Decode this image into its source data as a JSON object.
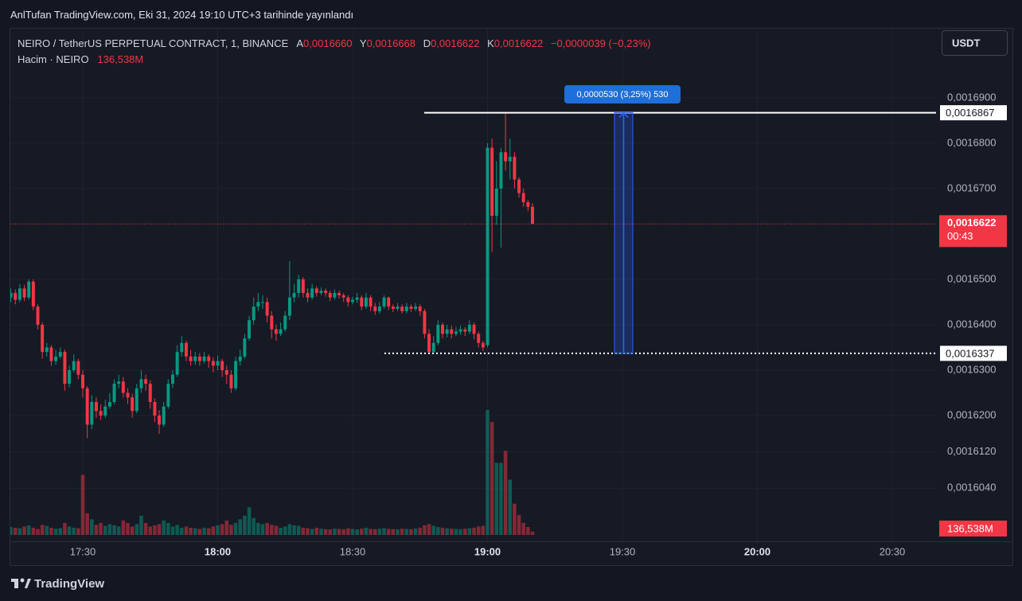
{
  "header": {
    "published": "AnlTufan TradingView.com, Eki 31, 2024 19:10 UTC+3 tarihinde yayınlandı",
    "currency": "USDT",
    "brand": "TradingView"
  },
  "chart_data": {
    "type": "candlestick",
    "legend": {
      "symbol": "NEIRO / TetherUS PERPETUAL CONTRACT, 1, BINANCE",
      "fields": [
        {
          "key": "A",
          "value": "0,0016660"
        },
        {
          "key": "Y",
          "value": "0,0016668"
        },
        {
          "key": "D",
          "value": "0,0016622"
        },
        {
          "key": "K",
          "value": "0,0016622"
        }
      ],
      "change": "−0,0000039 (−0,23%)",
      "volume_title": "Hacim · NEIRO"
    },
    "up_color": "#089981",
    "down_color": "#f23645",
    "x": [
      "17:14",
      "17:15",
      "17:16",
      "17:17",
      "17:18",
      "17:19",
      "17:20",
      "17:21",
      "17:22",
      "17:23",
      "17:24",
      "17:25",
      "17:26",
      "17:27",
      "17:28",
      "17:29",
      "17:30",
      "17:31",
      "17:32",
      "17:33",
      "17:34",
      "17:35",
      "17:36",
      "17:37",
      "17:38",
      "17:39",
      "17:40",
      "17:41",
      "17:42",
      "17:43",
      "17:44",
      "17:45",
      "17:46",
      "17:47",
      "17:48",
      "17:49",
      "17:50",
      "17:51",
      "17:52",
      "17:53",
      "17:54",
      "17:55",
      "17:56",
      "17:57",
      "17:58",
      "17:59",
      "18:00",
      "18:01",
      "18:02",
      "18:03",
      "18:04",
      "18:05",
      "18:06",
      "18:07",
      "18:08",
      "18:09",
      "18:10",
      "18:11",
      "18:12",
      "18:13",
      "18:14",
      "18:15",
      "18:16",
      "18:17",
      "18:18",
      "18:19",
      "18:20",
      "18:21",
      "18:22",
      "18:23",
      "18:24",
      "18:25",
      "18:26",
      "18:27",
      "18:28",
      "18:29",
      "18:30",
      "18:31",
      "18:32",
      "18:33",
      "18:34",
      "18:35",
      "18:36",
      "18:37",
      "18:38",
      "18:39",
      "18:40",
      "18:41",
      "18:42",
      "18:43",
      "18:44",
      "18:45",
      "18:46",
      "18:47",
      "18:48",
      "18:49",
      "18:50",
      "18:51",
      "18:52",
      "18:53",
      "18:54",
      "18:55",
      "18:56",
      "18:57",
      "18:58",
      "18:59",
      "19:00",
      "19:01",
      "19:02",
      "19:03",
      "19:04",
      "19:05",
      "19:06",
      "19:07",
      "19:08",
      "19:09",
      "19:10"
    ],
    "open": [
      0.001646,
      0.001647,
      0.0016455,
      0.001648,
      0.001646,
      0.0016495,
      0.001644,
      0.00164,
      0.001634,
      0.001635,
      0.001632,
      0.001633,
      0.001634,
      0.001627,
      0.00163,
      0.001632,
      0.001629,
      0.001626,
      0.001618,
      0.001623,
      0.001621,
      0.00162,
      0.001622,
      0.001623,
      0.001627,
      0.0016275,
      0.001625,
      0.001624,
      0.001621,
      0.001626,
      0.001628,
      0.001627,
      0.001623,
      0.00162,
      0.001618,
      0.001622,
      0.001627,
      0.001629,
      0.001634,
      0.001636,
      0.001633,
      0.001632,
      0.001633,
      0.001632,
      0.001633,
      0.001632,
      0.001631,
      0.001632,
      0.00163,
      0.001629,
      0.001626,
      0.001632,
      0.001633,
      0.001637,
      0.001641,
      0.001644,
      0.001645,
      0.001645,
      0.001642,
      0.001639,
      0.001638,
      0.001639,
      0.001642,
      0.001646,
      0.001647,
      0.00165,
      0.001647,
      0.001646,
      0.001648,
      0.001647,
      0.0016475,
      0.001647,
      0.001646,
      0.001647,
      0.0016465,
      0.001646,
      0.001645,
      0.0016455,
      0.001646,
      0.001644,
      0.001646,
      0.001644,
      0.001643,
      0.001644,
      0.001646,
      0.001644,
      0.0016435,
      0.001644,
      0.001643,
      0.001644,
      0.0016435,
      0.001644,
      0.001643,
      0.001638,
      0.001634,
      0.001636,
      0.00164,
      0.001638,
      0.001639,
      0.001638,
      0.0016385,
      0.001639,
      0.0016385,
      0.00164,
      0.001638,
      0.001636,
      0.0016355,
      0.001679,
      0.001664,
      0.00167,
      0.001678,
      0.001676,
      0.001677,
      0.001672,
      0.001669,
      0.001667,
      0.001666
    ],
    "high": [
      0.001648,
      0.0016478,
      0.001649,
      0.0016488,
      0.00165,
      0.00165,
      0.0016445,
      0.0016405,
      0.001636,
      0.0016355,
      0.0016345,
      0.001635,
      0.0016345,
      0.001631,
      0.0016335,
      0.0016325,
      0.00163,
      0.0016265,
      0.0016245,
      0.001624,
      0.0016225,
      0.0016235,
      0.001625,
      0.001628,
      0.001629,
      0.0016285,
      0.001626,
      0.0016248,
      0.001627,
      0.00163,
      0.001629,
      0.0016278,
      0.0016238,
      0.0016212,
      0.001623,
      0.001628,
      0.00163,
      0.0016355,
      0.0016375,
      0.0016365,
      0.0016345,
      0.001634,
      0.0016338,
      0.001634,
      0.0016335,
      0.0016328,
      0.0016332,
      0.0016325,
      0.001631,
      0.00163,
      0.001633,
      0.0016345,
      0.001638,
      0.001642,
      0.001646,
      0.001647,
      0.0016465,
      0.001646,
      0.001643,
      0.00164,
      0.0016405,
      0.001643,
      0.001654,
      0.001649,
      0.001651,
      0.0016505,
      0.001648,
      0.001649,
      0.0016485,
      0.0016482,
      0.001648,
      0.0016475,
      0.0016478,
      0.0016475,
      0.001647,
      0.0016465,
      0.0016462,
      0.001647,
      0.0016465,
      0.001647,
      0.0016465,
      0.0016448,
      0.001645,
      0.0016465,
      0.0016462,
      0.0016445,
      0.0016448,
      0.0016445,
      0.0016448,
      0.0016445,
      0.0016448,
      0.0016445,
      0.0016435,
      0.001639,
      0.0016375,
      0.001641,
      0.0016405,
      0.00164,
      0.0016398,
      0.0016395,
      0.0016398,
      0.0016395,
      0.001641,
      0.0016405,
      0.0016385,
      0.0016365,
      0.00168,
      0.001681,
      0.001676,
      0.001679,
      0.0016867,
      0.001681,
      0.001678,
      0.0016725,
      0.00167,
      0.0016675,
      0.0016668
    ],
    "low": [
      0.001645,
      0.0016445,
      0.001645,
      0.0016452,
      0.0016455,
      0.0016432,
      0.001639,
      0.0016325,
      0.001633,
      0.001631,
      0.0016312,
      0.0016325,
      0.0016255,
      0.0016262,
      0.0016295,
      0.001628,
      0.001624,
      0.001615,
      0.001617,
      0.0016195,
      0.001619,
      0.0016195,
      0.0016215,
      0.0016225,
      0.001626,
      0.001624,
      0.0016225,
      0.0016195,
      0.0016205,
      0.001625,
      0.0016255,
      0.0016215,
      0.0016185,
      0.001616,
      0.0016175,
      0.0016215,
      0.001626,
      0.0016285,
      0.001633,
      0.001632,
      0.001631,
      0.0016312,
      0.001631,
      0.0016315,
      0.0016305,
      0.0016295,
      0.00163,
      0.0016285,
      0.001627,
      0.001625,
      0.0016255,
      0.001631,
      0.0016325,
      0.0016365,
      0.00164,
      0.001643,
      0.0016435,
      0.0016405,
      0.001637,
      0.0016365,
      0.0016375,
      0.0016385,
      0.001641,
      0.001645,
      0.001646,
      0.001646,
      0.001645,
      0.0016455,
      0.0016462,
      0.0016465,
      0.0016462,
      0.0016452,
      0.0016455,
      0.0016458,
      0.001645,
      0.001644,
      0.0016445,
      0.0016448,
      0.0016432,
      0.0016435,
      0.001643,
      0.0016422,
      0.0016425,
      0.0016435,
      0.0016432,
      0.0016428,
      0.001643,
      0.0016425,
      0.0016425,
      0.0016428,
      0.001643,
      0.001642,
      0.001637,
      0.0016337,
      0.0016337,
      0.0016355,
      0.001637,
      0.0016372,
      0.001637,
      0.0016375,
      0.0016378,
      0.0016375,
      0.001638,
      0.0016368,
      0.001635,
      0.0016342,
      0.001635,
      0.001656,
      0.001662,
      0.001657,
      0.001674,
      0.001672,
      0.00167,
      0.001668,
      0.001666,
      0.001665,
      0.0016622
    ],
    "close": [
      0.001647,
      0.0016455,
      0.001648,
      0.001646,
      0.0016495,
      0.001644,
      0.00164,
      0.001634,
      0.001635,
      0.001632,
      0.001633,
      0.001634,
      0.001627,
      0.00163,
      0.001632,
      0.001629,
      0.001626,
      0.001618,
      0.001623,
      0.001621,
      0.00162,
      0.001622,
      0.001623,
      0.001627,
      0.0016275,
      0.001625,
      0.001624,
      0.001621,
      0.001626,
      0.001628,
      0.001627,
      0.001623,
      0.00162,
      0.001618,
      0.001622,
      0.001627,
      0.001629,
      0.001634,
      0.001636,
      0.001633,
      0.001632,
      0.001633,
      0.001632,
      0.001633,
      0.001632,
      0.001631,
      0.001632,
      0.00163,
      0.001629,
      0.001626,
      0.001632,
      0.001633,
      0.001637,
      0.001641,
      0.001644,
      0.001645,
      0.001645,
      0.001642,
      0.001639,
      0.001638,
      0.001639,
      0.001642,
      0.001646,
      0.001647,
      0.00165,
      0.001647,
      0.001646,
      0.001648,
      0.001647,
      0.0016475,
      0.001647,
      0.001646,
      0.001647,
      0.0016465,
      0.001646,
      0.001645,
      0.0016455,
      0.001646,
      0.001644,
      0.001646,
      0.001644,
      0.001643,
      0.001644,
      0.001646,
      0.001644,
      0.0016435,
      0.001644,
      0.001643,
      0.001644,
      0.0016435,
      0.001644,
      0.001643,
      0.001638,
      0.001634,
      0.001636,
      0.00164,
      0.001638,
      0.001639,
      0.001638,
      0.0016385,
      0.001639,
      0.0016385,
      0.00164,
      0.001638,
      0.001636,
      0.001635,
      0.001679,
      0.001664,
      0.00167,
      0.001678,
      0.001676,
      0.001677,
      0.001672,
      0.001669,
      0.001667,
      0.001666,
      0.0016622
    ],
    "volume": [
      330,
      300,
      280,
      350,
      400,
      300,
      250,
      420,
      380,
      300,
      260,
      280,
      500,
      350,
      300,
      280,
      2500,
      900,
      650,
      420,
      500,
      380,
      450,
      400,
      350,
      600,
      500,
      350,
      450,
      800,
      500,
      350,
      400,
      450,
      600,
      500,
      350,
      420,
      300,
      350,
      300,
      280,
      250,
      300,
      280,
      350,
      400,
      450,
      600,
      420,
      500,
      650,
      800,
      1150,
      700,
      500,
      450,
      500,
      420,
      380,
      300,
      350,
      450,
      400,
      380,
      300,
      280,
      250,
      300,
      260,
      240,
      230,
      260,
      250,
      240,
      280,
      250,
      230,
      260,
      300,
      250,
      240,
      260,
      280,
      250,
      240,
      230,
      260,
      250,
      240,
      270,
      300,
      400,
      450,
      380,
      330,
      300,
      280,
      260,
      250,
      240,
      260,
      280,
      300,
      350,
      380,
      5200,
      4700,
      3000,
      3000,
      3500,
      2300,
      1300,
      830,
      500,
      330,
      136.538
    ],
    "last_volume_label": "136,538M",
    "xlim": [
      "17:14",
      "20:40"
    ],
    "xticks": [
      "17:30",
      "18:00",
      "18:30",
      "19:00",
      "19:30",
      "20:00",
      "20:30"
    ],
    "ylim": [
      0.0015923,
      0.0017054
    ],
    "yticks": [
      {
        "value": 0.00169,
        "label": "0,0016900"
      },
      {
        "value": 0.00168,
        "label": "0,0016800"
      },
      {
        "value": 0.00167,
        "label": "0,0016700"
      },
      {
        "value": 0.00165,
        "label": "0,0016500"
      },
      {
        "value": 0.00164,
        "label": "0,0016400"
      },
      {
        "value": 0.00163,
        "label": "0,0016300"
      },
      {
        "value": 0.00162,
        "label": "0,0016200"
      },
      {
        "value": 0.001612,
        "label": "0,0016120"
      },
      {
        "value": 0.001604,
        "label": "0,0016040"
      }
    ],
    "grid": true,
    "price_line": {
      "value": 0.0016622,
      "label": "0,0016622",
      "countdown": "00:43"
    },
    "hlines": [
      {
        "value": 0.0016867,
        "label": "0,0016867",
        "style": "solid"
      },
      {
        "value": 0.0016337,
        "label": "0,0016337",
        "style": "dotted"
      }
    ],
    "measure_label": "0,0000530 (3,25%) 530"
  }
}
